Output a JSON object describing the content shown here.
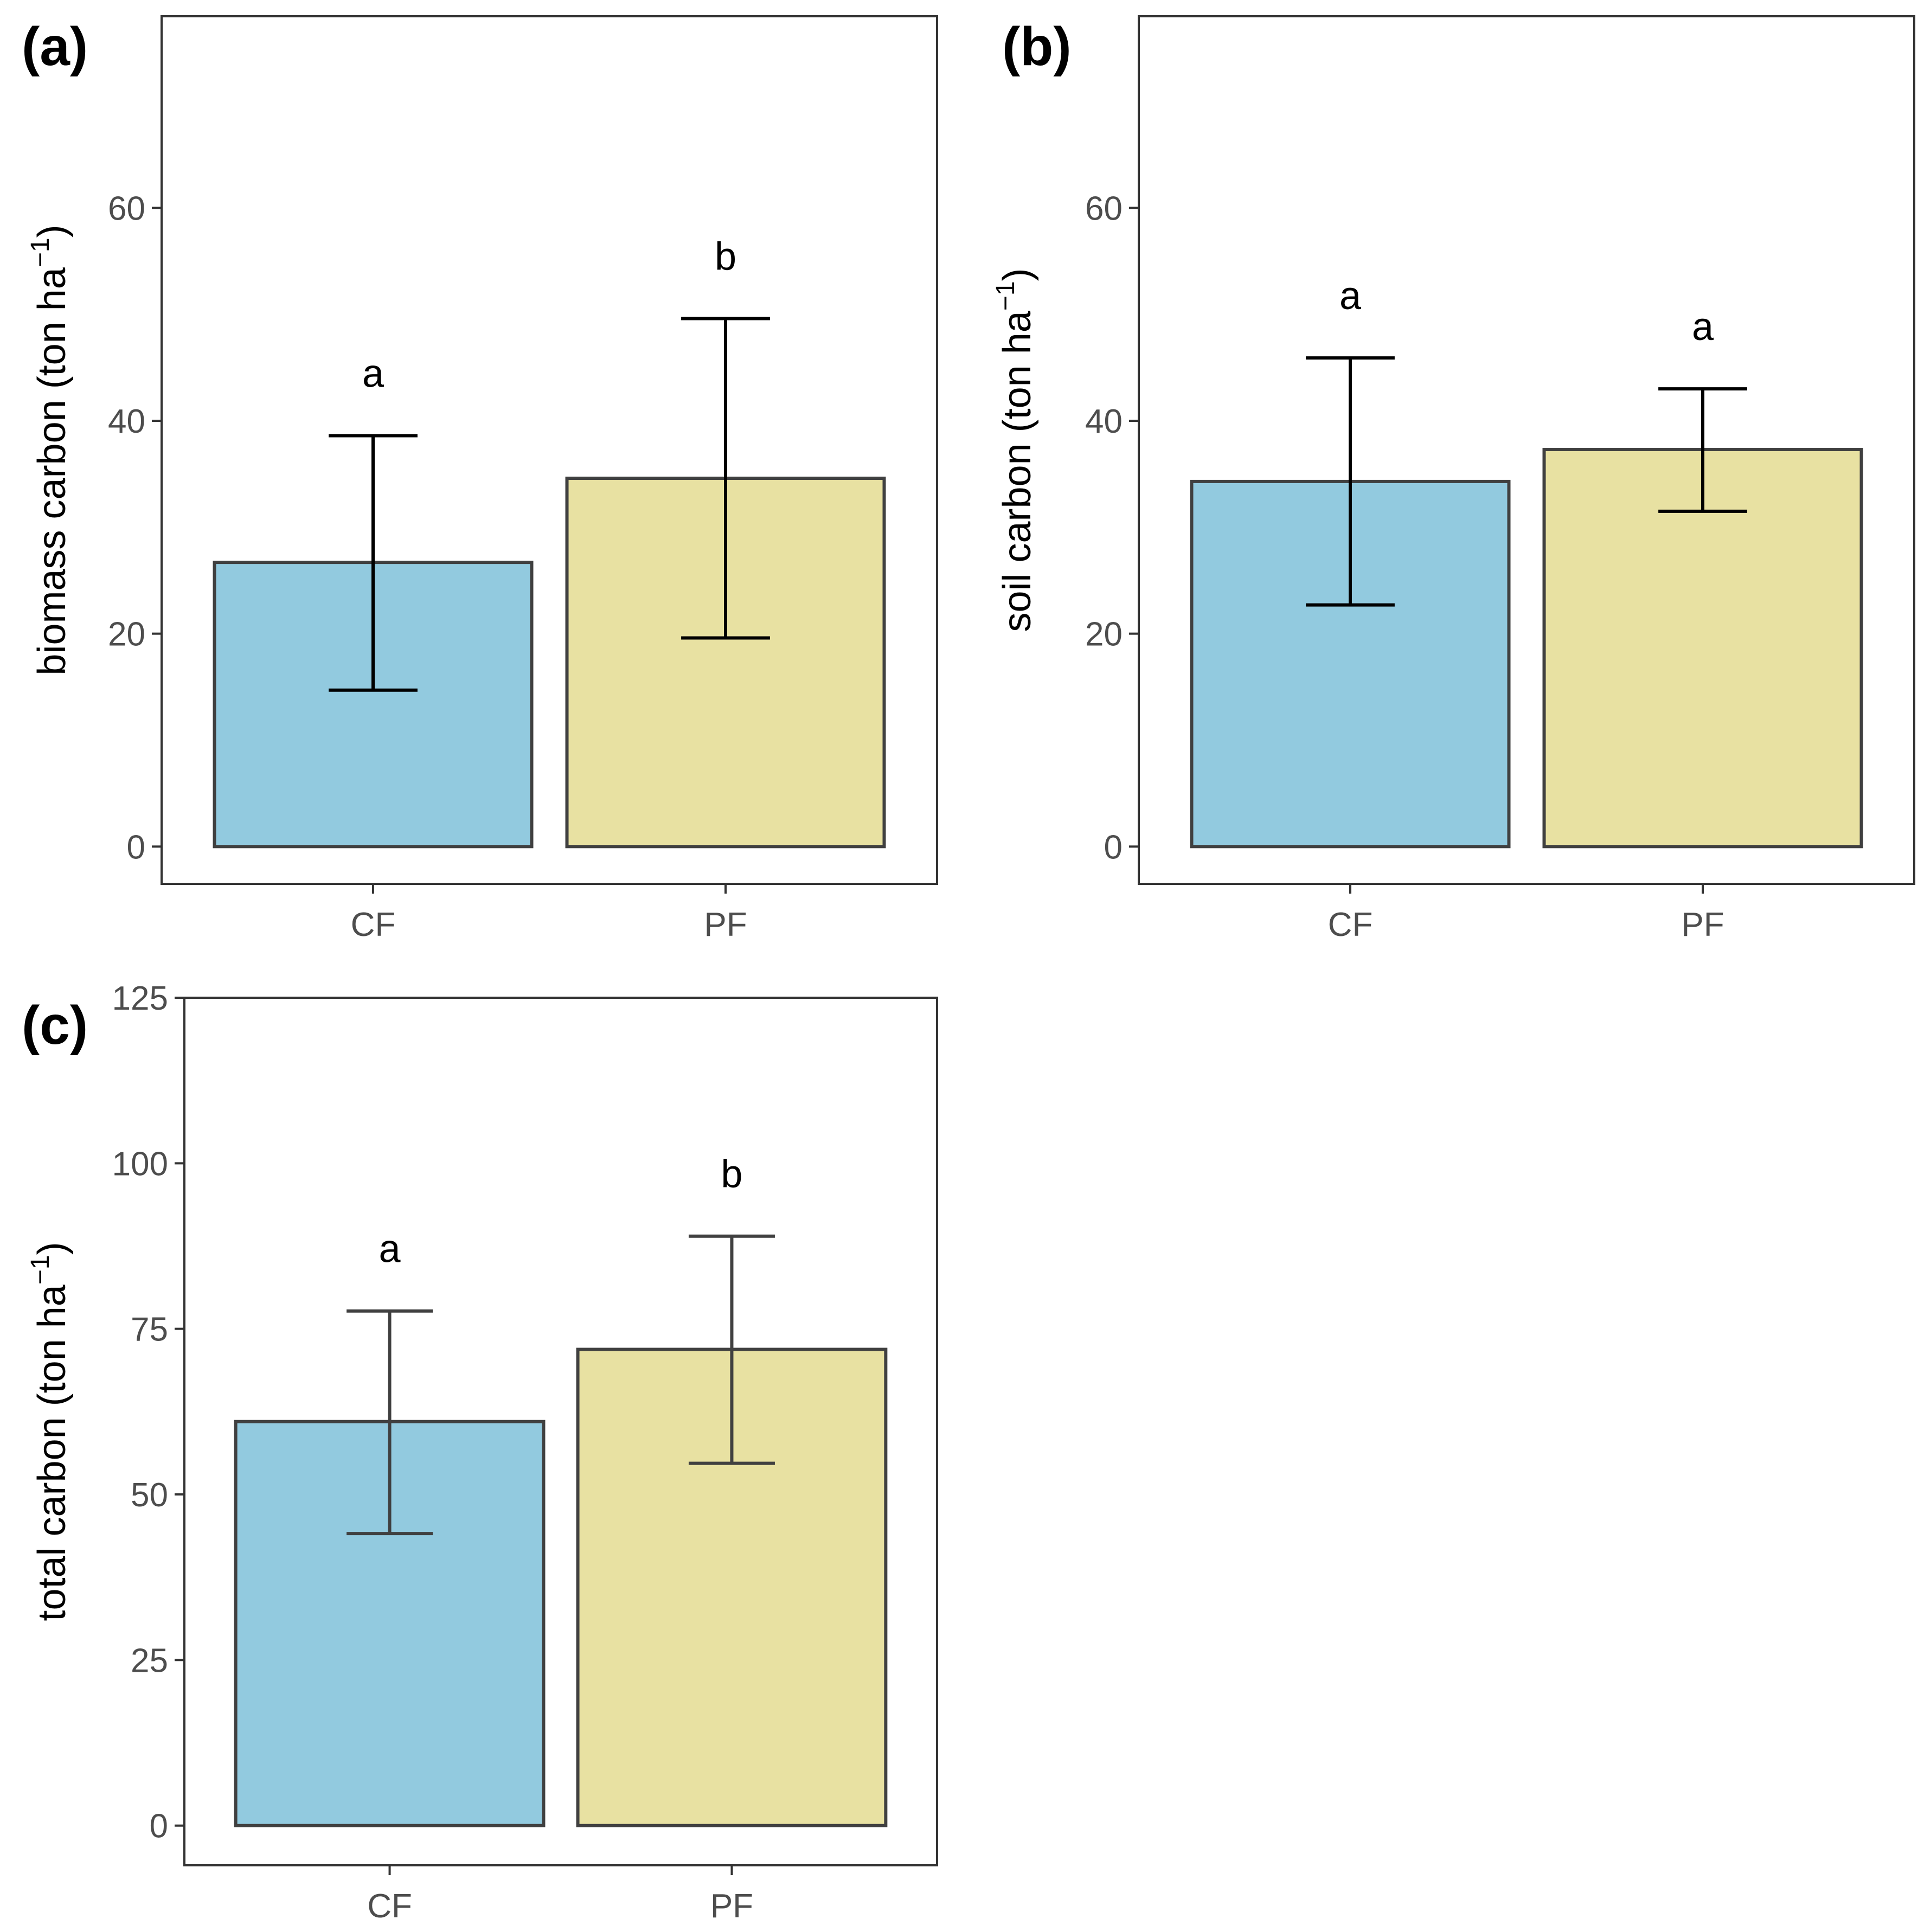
{
  "colors": {
    "CF": "#92CADF",
    "PF": "#E8E1A2",
    "outline": "#404040",
    "tick": "#4d4d4d"
  },
  "chart_data": [
    {
      "panel": "(a)",
      "type": "bar",
      "categories": [
        "CF",
        "PF"
      ],
      "values": [
        26.7,
        34.6
      ],
      "error_low": [
        14.7,
        19.6
      ],
      "error_high": [
        38.6,
        49.6
      ],
      "significance": [
        "a",
        "b"
      ],
      "ylabel": "biomass carbon (ton ha",
      "ylabel_sup": "−1",
      "ylabel_close": ")",
      "ylim": [
        -3.5,
        78
      ],
      "yticks": [
        0,
        20,
        40,
        60
      ],
      "ytick_labels": [
        "0",
        "20",
        "40",
        "60"
      ]
    },
    {
      "panel": "(b)",
      "type": "bar",
      "categories": [
        "CF",
        "PF"
      ],
      "values": [
        34.3,
        37.3
      ],
      "error_low": [
        22.7,
        31.5
      ],
      "error_high": [
        45.9,
        43.0
      ],
      "significance": [
        "a",
        "a"
      ],
      "ylabel": "soil carbon (ton ha",
      "ylabel_sup": "−1",
      "ylabel_close": ")",
      "ylim": [
        -3.5,
        78
      ],
      "yticks": [
        0,
        20,
        40,
        60
      ],
      "ytick_labels": [
        "0",
        "20",
        "40",
        "60"
      ]
    },
    {
      "panel": "(c)",
      "type": "bar",
      "categories": [
        "CF",
        "PF"
      ],
      "values": [
        61.0,
        71.9
      ],
      "error_low": [
        44.1,
        54.7
      ],
      "error_high": [
        77.7,
        89.0
      ],
      "significance": [
        "a",
        "b"
      ],
      "ylabel": "total carbon (ton ha",
      "ylabel_sup": "−1",
      "ylabel_close": ")",
      "ylim": [
        -6,
        125
      ],
      "yticks": [
        0,
        25,
        50,
        75,
        100,
        125
      ],
      "ytick_labels": [
        "0",
        "25",
        "50",
        "75",
        "100",
        "125"
      ]
    }
  ]
}
